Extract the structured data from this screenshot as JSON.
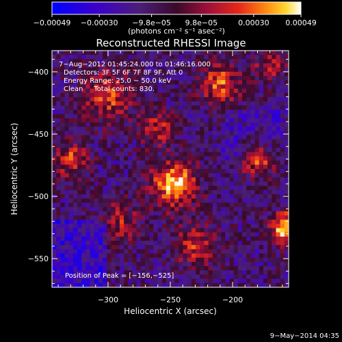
{
  "chart_data": {
    "type": "heatmap",
    "title": "Reconstructed RHESSI Image",
    "xlabel": "Heliocentric X (arcsec)",
    "ylabel": "Heliocentric Y (arcsec)",
    "xlim": [
      -345,
      -155
    ],
    "ylim": [
      -573,
      -383
    ],
    "x_ticks": [
      -300,
      -250,
      -200
    ],
    "y_ticks": [
      -400,
      -450,
      -500,
      -550
    ],
    "colorbar": {
      "label": "(photons cm⁻² s⁻¹ asec⁻²)",
      "range": [
        -0.00049,
        0.00049
      ],
      "ticks": [
        "−0.00049",
        "−0.00030",
        "−9.8e−05",
        "9.8e−05",
        "0.00030",
        "0.00049"
      ]
    },
    "annotations": [
      "7−Aug−2012 01:45:24.000 to 01:46:16.000",
      "Detectors: 3F 5F 6F 7F 8F 9F, Att 0",
      "Energy Range: 25.0 − 50.0 keV",
      "Clean     Total counts: 830."
    ],
    "peak_label": "Position of Peak = [−156,−525]",
    "peak_position": [
      -156,
      -525
    ],
    "peak_value": 0.00049
  },
  "footer_date": "9−May−2014 04:35"
}
